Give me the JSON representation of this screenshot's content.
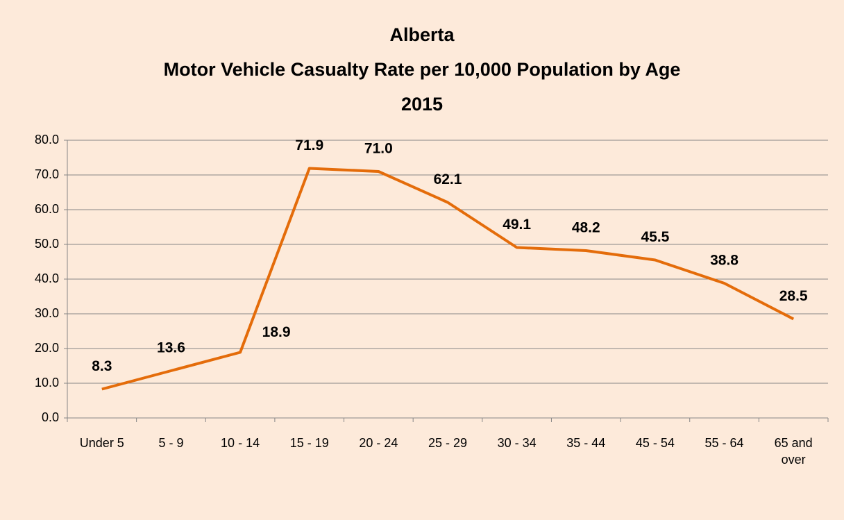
{
  "chart_data": {
    "type": "line",
    "title": [
      "Alberta",
      "Motor Vehicle Casualty Rate per 10,000 Population by Age",
      "2015"
    ],
    "categories": [
      "Under 5",
      "5 - 9",
      "10 - 14",
      "15 - 19",
      "20 - 24",
      "25 - 29",
      "30 - 34",
      "35 - 44",
      "45 - 54",
      "55 - 64",
      "65 and over"
    ],
    "values": [
      8.3,
      13.6,
      18.9,
      71.9,
      71.0,
      62.1,
      49.1,
      48.2,
      45.5,
      38.8,
      28.5
    ],
    "value_labels": [
      "8.3",
      "13.6",
      "18.9",
      "71.9",
      "71.0",
      "62.1",
      "49.1",
      "48.2",
      "45.5",
      "38.8",
      "28.5"
    ],
    "color": "#e46c0a",
    "ylim": [
      0,
      80
    ],
    "yticks": [
      {
        "value": 0,
        "label": "0.0"
      },
      {
        "value": 10,
        "label": "10.0"
      },
      {
        "value": 20,
        "label": "20.0"
      },
      {
        "value": 30,
        "label": "30.0"
      },
      {
        "value": 40,
        "label": "40.0"
      },
      {
        "value": 50,
        "label": "50.0"
      },
      {
        "value": 60,
        "label": "60.0"
      },
      {
        "value": 70,
        "label": "70.0"
      },
      {
        "value": 80,
        "label": "80.0"
      }
    ],
    "grid": true
  }
}
